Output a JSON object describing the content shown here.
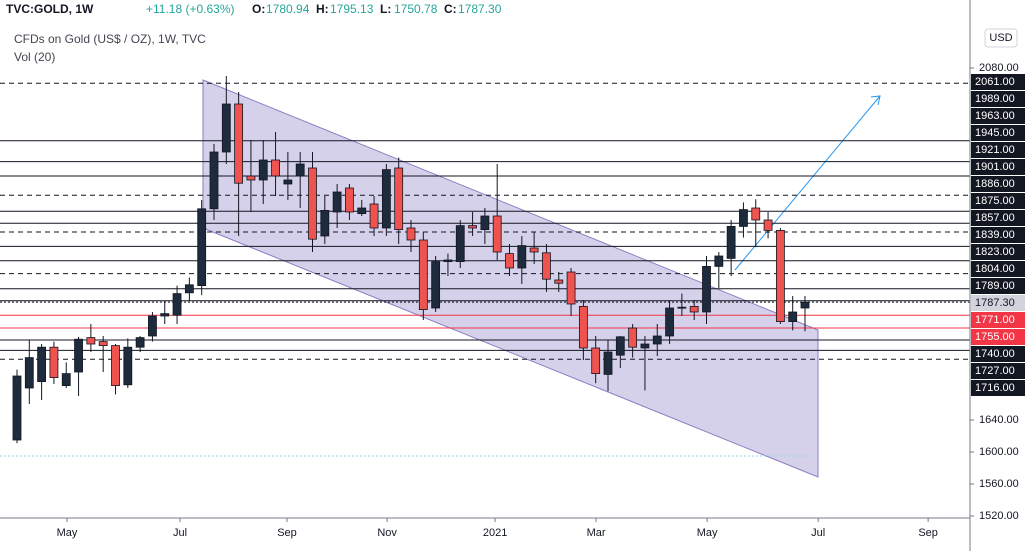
{
  "chart_data": {
    "type": "candlestick",
    "symbol": "TVC:GOLD, 1W",
    "change": "+11.18 (+0.63%)",
    "ohlc_header": [
      {
        "label": "O:",
        "value": "1780.94"
      },
      {
        "label": "H:",
        "value": "1795.13"
      },
      {
        "label": "L:",
        "value": "1750.78"
      },
      {
        "label": "C:",
        "value": "1787.30"
      }
    ],
    "title": "CFDs on Gold (US$ / OZ), 1W, TVC",
    "subtitle": "Vol (20)",
    "currency": "USD",
    "up_color": "#1e2b3c",
    "down_color": "#ef5350",
    "open": [
      1615,
      1680,
      1688,
      1731,
      1683,
      1700,
      1743,
      1738,
      1733,
      1684,
      1731,
      1745,
      1770,
      1771,
      1799,
      1808,
      1904,
      1975,
      2035,
      1945,
      1940,
      1965,
      1935,
      1945,
      1955,
      1870,
      1900,
      1930,
      1898,
      1910,
      1880,
      1955,
      1880,
      1865,
      1780,
      1838,
      1838,
      1883,
      1878,
      1895,
      1848,
      1830,
      1855,
      1849,
      1815,
      1825,
      1782,
      1730,
      1697,
      1721,
      1755,
      1730,
      1735,
      1745,
      1780,
      1782,
      1775,
      1832,
      1842,
      1882,
      1905,
      1890,
      1877,
      1763,
      1780
    ],
    "high": [
      1703,
      1740,
      1735,
      1738,
      1712,
      1744,
      1760,
      1745,
      1735,
      1742,
      1745,
      1775,
      1789,
      1808,
      1818,
      1915,
      1985,
      2070,
      2050,
      1990,
      1990,
      2000,
      1975,
      1975,
      1975,
      1920,
      1935,
      1935,
      1915,
      1920,
      1960,
      1968,
      1890,
      1875,
      1845,
      1848,
      1890,
      1900,
      1905,
      1960,
      1860,
      1870,
      1875,
      1860,
      1825,
      1830,
      1790,
      1745,
      1740,
      1745,
      1760,
      1745,
      1760,
      1790,
      1798,
      1790,
      1845,
      1850,
      1890,
      1912,
      1916,
      1900,
      1880,
      1795,
      1795
    ],
    "low": [
      1611,
      1660,
      1665,
      1685,
      1680,
      1670,
      1725,
      1700,
      1672,
      1680,
      1725,
      1738,
      1760,
      1760,
      1789,
      1796,
      1890,
      1960,
      1870,
      1900,
      1910,
      1920,
      1915,
      1905,
      1850,
      1860,
      1880,
      1890,
      1895,
      1870,
      1870,
      1860,
      1850,
      1765,
      1775,
      1820,
      1830,
      1870,
      1860,
      1840,
      1820,
      1810,
      1835,
      1800,
      1800,
      1770,
      1715,
      1686,
      1676,
      1705,
      1718,
      1677,
      1720,
      1735,
      1770,
      1765,
      1760,
      1805,
      1820,
      1868,
      1856,
      1867,
      1760,
      1752,
      1750.8
    ],
    "close": [
      1695,
      1718,
      1731,
      1693,
      1698,
      1741,
      1735,
      1733,
      1683,
      1731,
      1743,
      1770,
      1773,
      1798,
      1809,
      1904,
      1975,
      2035,
      1936,
      1940,
      1965,
      1945,
      1940,
      1960,
      1866,
      1902,
      1925,
      1900,
      1905,
      1880,
      1953,
      1878,
      1865,
      1778,
      1838,
      1840,
      1883,
      1880,
      1895,
      1850,
      1830,
      1858,
      1850,
      1816,
      1811,
      1785,
      1730,
      1698,
      1725,
      1744,
      1731,
      1735,
      1745,
      1780,
      1781,
      1775,
      1832,
      1845,
      1882,
      1903,
      1890,
      1877,
      1763,
      1775,
      1787.3
    ],
    "xlim": [
      -1.38,
      77.4
    ],
    "xticks": [
      {
        "value": 4.06,
        "label": "May"
      },
      {
        "value": 13.24,
        "label": "Jul"
      },
      {
        "value": 21.93,
        "label": "Sep"
      },
      {
        "value": 30.06,
        "label": "Nov"
      },
      {
        "value": 38.83,
        "label": "2021"
      },
      {
        "value": 47.03,
        "label": "Mar"
      },
      {
        "value": 56.05,
        "label": "May"
      },
      {
        "value": 65.07,
        "label": "Jul"
      },
      {
        "value": 74.0,
        "label": "Sep"
      }
    ],
    "ylim": [
      1517.5,
      2137.5
    ],
    "yticks": [
      {
        "value": 1520,
        "label": "1520.00"
      },
      {
        "value": 1560,
        "label": "1560.00"
      },
      {
        "value": 1600,
        "label": "1600.00"
      },
      {
        "value": 1640,
        "label": "1640.00"
      },
      {
        "value": 2080,
        "label": "2080.00"
      }
    ],
    "levels": [
      {
        "value": 2061,
        "label": "2061.00",
        "style": "dashed",
        "color": "#131722"
      },
      {
        "value": 1989,
        "label": "1989.00",
        "style": "solid",
        "color": "#131722"
      },
      {
        "value": 1963,
        "label": "1963.00",
        "style": "solid",
        "color": "#131722"
      },
      {
        "value": 1945,
        "label": "1945.00",
        "style": "solid",
        "color": "#131722"
      },
      {
        "value": 1921,
        "label": "1921.00",
        "style": "dashed",
        "color": "#131722"
      },
      {
        "value": 1901,
        "label": "1901.00",
        "style": "solid",
        "color": "#131722"
      },
      {
        "value": 1886,
        "label": "1886.00",
        "style": "solid",
        "color": "#131722"
      },
      {
        "value": 1875,
        "label": "1875.00",
        "style": "dashed",
        "color": "#131722"
      },
      {
        "value": 1857,
        "label": "1857.00",
        "style": "solid",
        "color": "#131722"
      },
      {
        "value": 1839,
        "label": "1839.00",
        "style": "solid",
        "color": "#131722"
      },
      {
        "value": 1823,
        "label": "1823.00",
        "style": "dashed",
        "color": "#131722"
      },
      {
        "value": 1804,
        "label": "1804.00",
        "style": "solid",
        "color": "#131722"
      },
      {
        "value": 1789,
        "label": "1789.00",
        "style": "solid",
        "color": "#131722"
      },
      {
        "value": 1787.3,
        "label": "1787.30",
        "style": "dotted",
        "color": "#d1d4dc"
      },
      {
        "value": 1771,
        "label": "1771.00",
        "style": "solid",
        "color": "#f23645"
      },
      {
        "value": 1755,
        "label": "1755.00",
        "style": "solid",
        "color": "#f23645"
      },
      {
        "value": 1740,
        "label": "1740.00",
        "style": "solid",
        "color": "#131722"
      },
      {
        "value": 1727,
        "label": "1727.00",
        "style": "solid",
        "color": "#131722"
      },
      {
        "value": 1716,
        "label": "1716.00",
        "style": "dashed",
        "color": "#131722"
      }
    ]
  }
}
